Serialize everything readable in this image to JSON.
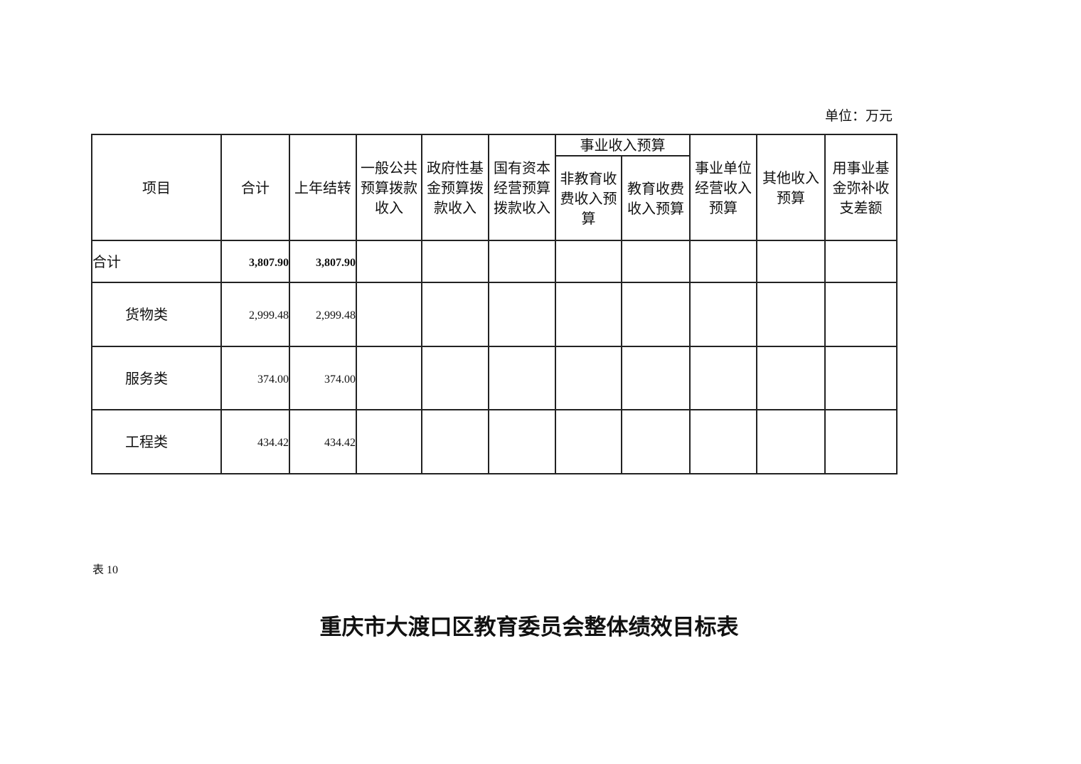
{
  "unit_label": "单位：万元",
  "table": {
    "headers": {
      "item": "项目",
      "total": "合计",
      "carryover": "上年结转",
      "general_budget": "一般公共预算拨款收入",
      "gov_fund": "政府性基金预算拨款收入",
      "state_capital": "国有资本经营预算拨款收入",
      "business_income_group": "事业收入预算",
      "non_edu_fee": "非教育收费收入预算",
      "edu_fee": "教育收费收入预算",
      "unit_operating": "事业单位经营收入预算",
      "other_income": "其他收入预算",
      "fund_offset": "用事业基金弥补收支差额"
    },
    "rows": [
      {
        "item": "合计",
        "total": "3,807.90",
        "carryover": "3,807.90"
      },
      {
        "item": "货物类",
        "total": "2,999.48",
        "carryover": "2,999.48"
      },
      {
        "item": "服务类",
        "total": "374.00",
        "carryover": "374.00"
      },
      {
        "item": "工程类",
        "total": "434.42",
        "carryover": "434.42"
      }
    ]
  },
  "table_number": "表 10",
  "next_title": "重庆市大渡口区教育委员会整体绩效目标表"
}
